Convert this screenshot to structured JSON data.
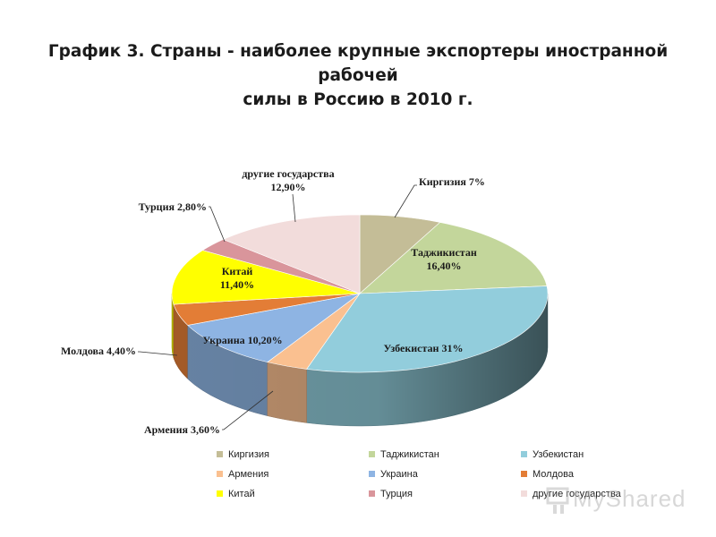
{
  "title_line1": "График 3. Страны - наиболее крупные экспортеры иностранной рабочей",
  "title_line2": "силы в Россию в 2010 г.",
  "chart_data": {
    "type": "pie",
    "variant": "3d-exploded-none",
    "start": "12 o'clock, clockwise",
    "categories": [
      "Киргизия",
      "Таджикистан",
      "Узбекистан",
      "Армения",
      "Украина",
      "Молдова",
      "Китай",
      "Турция",
      "другие государства"
    ],
    "values": [
      7,
      16.4,
      31,
      3.6,
      10.2,
      4.4,
      11.4,
      2.8,
      12.9
    ],
    "data_labels": [
      {
        "name": "Киргизия",
        "value": "7%"
      },
      {
        "name": "Таджикистан",
        "value": "16,40%"
      },
      {
        "name": "Узбекистан",
        "value": "31%"
      },
      {
        "name": "Армения",
        "value": "3,60%"
      },
      {
        "name": "Украина",
        "value": "10,20%"
      },
      {
        "name": "Молдова",
        "value": "4,40%"
      },
      {
        "name": "Китай",
        "value": "11,40%"
      },
      {
        "name": "Турция",
        "value": "2,80%"
      },
      {
        "name": "другие государства",
        "value": "12,90%"
      }
    ],
    "colors": [
      "#c4bd97",
      "#c3d69b",
      "#92cddc",
      "#fac090",
      "#8eb4e3",
      "#e37d36",
      "#ffff00",
      "#d9959b",
      "#f2dcdb"
    ],
    "legend_position": "bottom"
  },
  "legend": [
    "Киргизия",
    "Таджикистан",
    "Узбекистан",
    "Армения",
    "Украина",
    "Молдова",
    "Китай",
    "Турция",
    "другие государства"
  ],
  "watermark_text": "MyShared"
}
